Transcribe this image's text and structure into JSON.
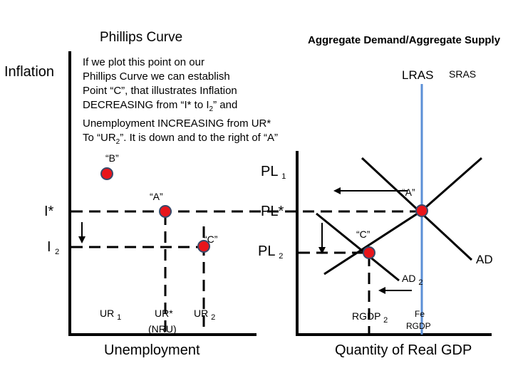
{
  "phillips": {
    "title": "Phillips Curve",
    "y_axis_label": "Inflation",
    "x_axis_label": "Unemployment",
    "point_b": "“B”",
    "point_a": "“A”",
    "point_c": "“C”",
    "i_star": "I*",
    "i2_main": "I",
    "i2_sub": "2",
    "ur1_main": "UR",
    "ur1_sub": "1",
    "ur_star": "UR*",
    "nru": "(NRU)",
    "ur2_main": "UR",
    "ur2_sub": "2"
  },
  "note": {
    "line1": "If we plot this point on our",
    "line2": "Phillips Curve we can establish",
    "line3": "Point “C”, that illustrates Inflation",
    "line4_a": "DECREASING from “I* to I",
    "line4_sub": "2",
    "line4_b": "” and",
    "line5": "Unemployment INCREASING from UR*",
    "line6_a": "To “UR",
    "line6_sub": "2",
    "line6_b": "”. It is down and to the right of “A”"
  },
  "adas": {
    "title": "Aggregate Demand/Aggregate Supply",
    "lras": "LRAS",
    "sras": "SRAS",
    "pl1_main": "PL",
    "pl1_sub": "1",
    "pl_star": "PL*",
    "pl2_main": "PL",
    "pl2_sub": "2",
    "point_a": "“A”",
    "point_c": "“C”",
    "ad": "AD",
    "ad2_main": "AD",
    "ad2_sub": "2",
    "rgdp2_main": "RGDP",
    "rgdp2_sub": "2",
    "fe": "Fe",
    "fe_rgdp": "RGDP",
    "x_axis_label": "Quantity of Real GDP"
  },
  "colors": {
    "point": "#e8151b",
    "lras": "#5b8fd6",
    "ink": "#000000"
  }
}
